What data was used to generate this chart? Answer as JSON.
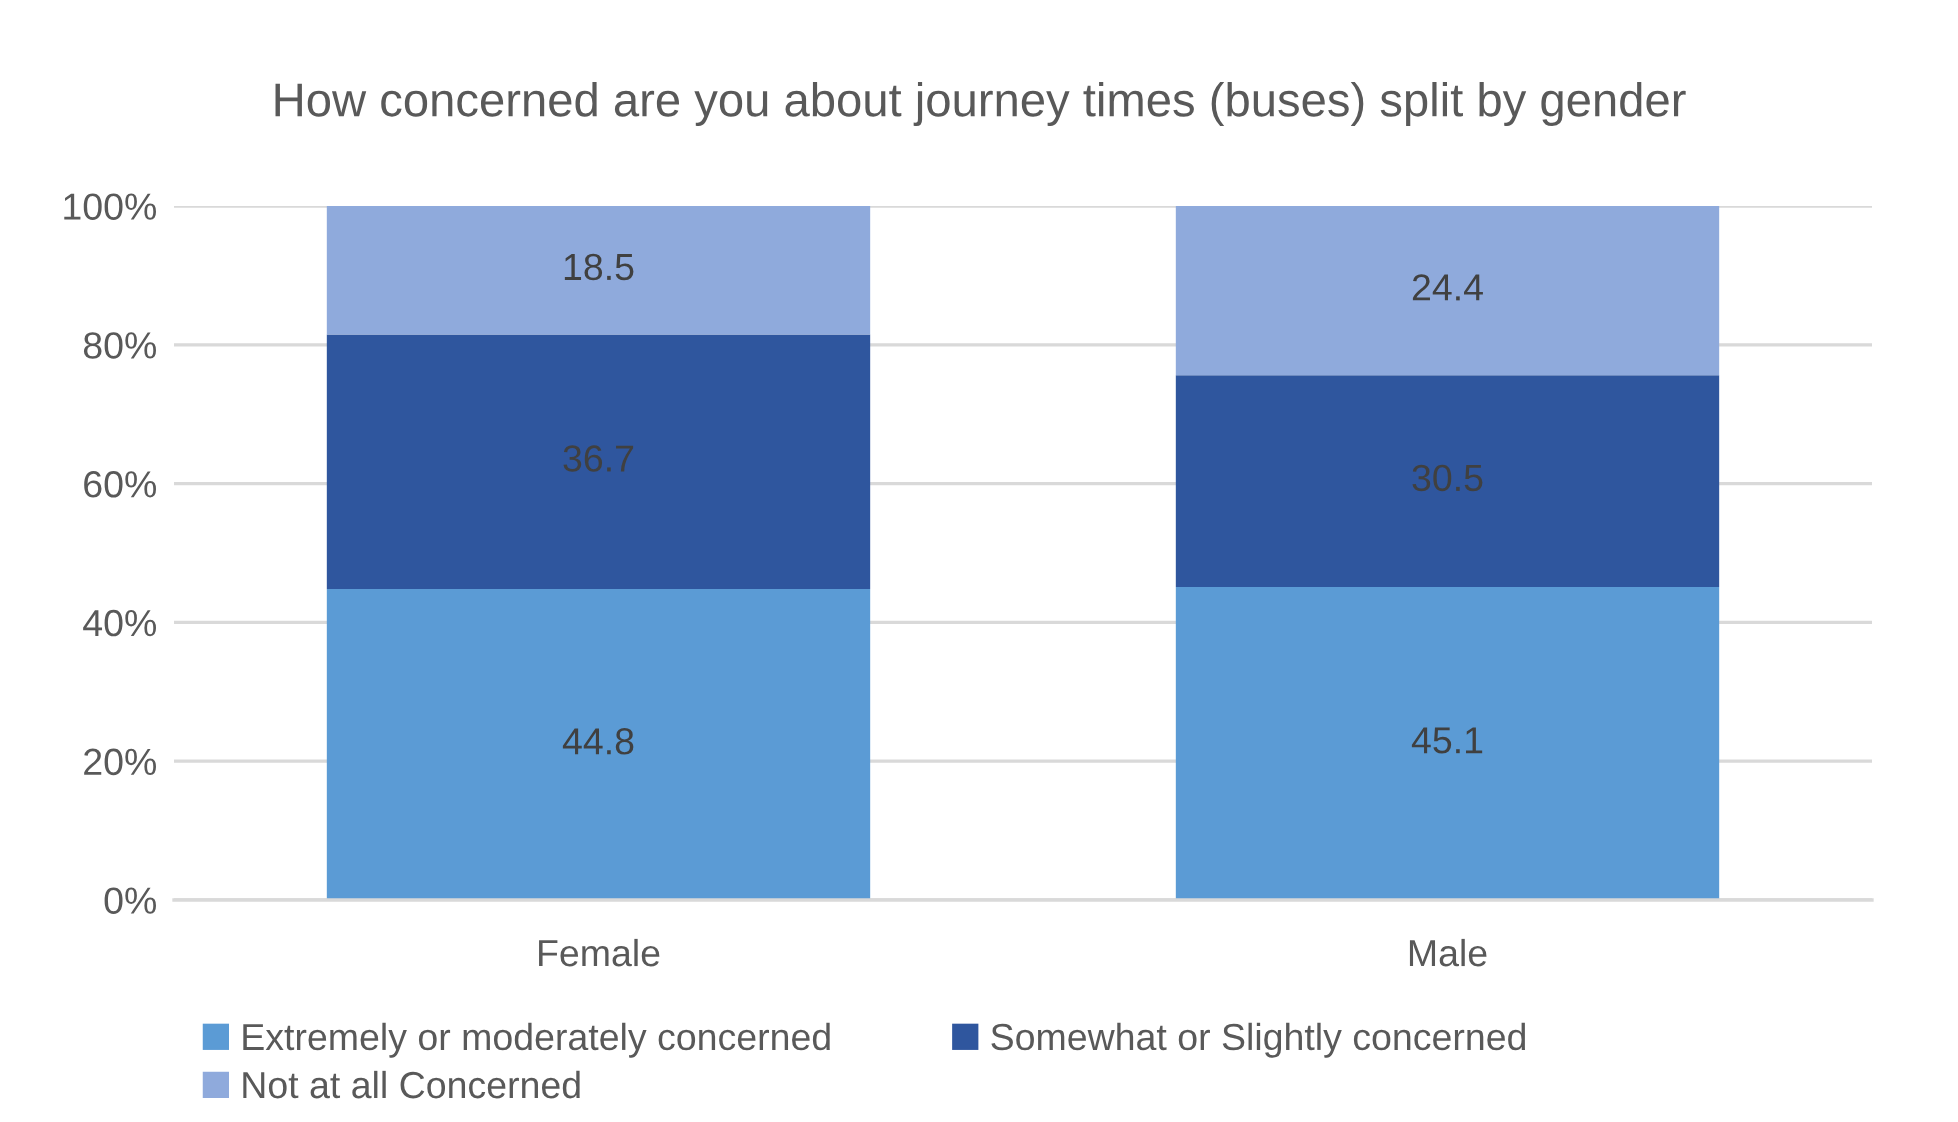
{
  "chart_data": {
    "type": "bar",
    "title": "How concerned are you about journey times (buses) split by gender",
    "categories": [
      "Female",
      "Male"
    ],
    "series": [
      {
        "name": "Extremely or moderately concerned",
        "color": "#5b9bd5",
        "values": [
          44.8,
          45.1
        ]
      },
      {
        "name": "Somewhat or Slightly concerned",
        "color": "#2f569e",
        "values": [
          36.7,
          30.5
        ]
      },
      {
        "name": "Not at all Concerned",
        "color": "#8faadc",
        "values": [
          18.5,
          24.4
        ]
      }
    ],
    "stacked": true,
    "ylim": [
      0,
      100
    ],
    "yticks": [
      {
        "value": 0,
        "label": "0%"
      },
      {
        "value": 20,
        "label": "20%"
      },
      {
        "value": 40,
        "label": "40%"
      },
      {
        "value": 60,
        "label": "60%"
      },
      {
        "value": 80,
        "label": "80%"
      },
      {
        "value": 100,
        "label": "100%"
      }
    ],
    "grid": "y",
    "legend": "bottom",
    "data_labels": true
  }
}
